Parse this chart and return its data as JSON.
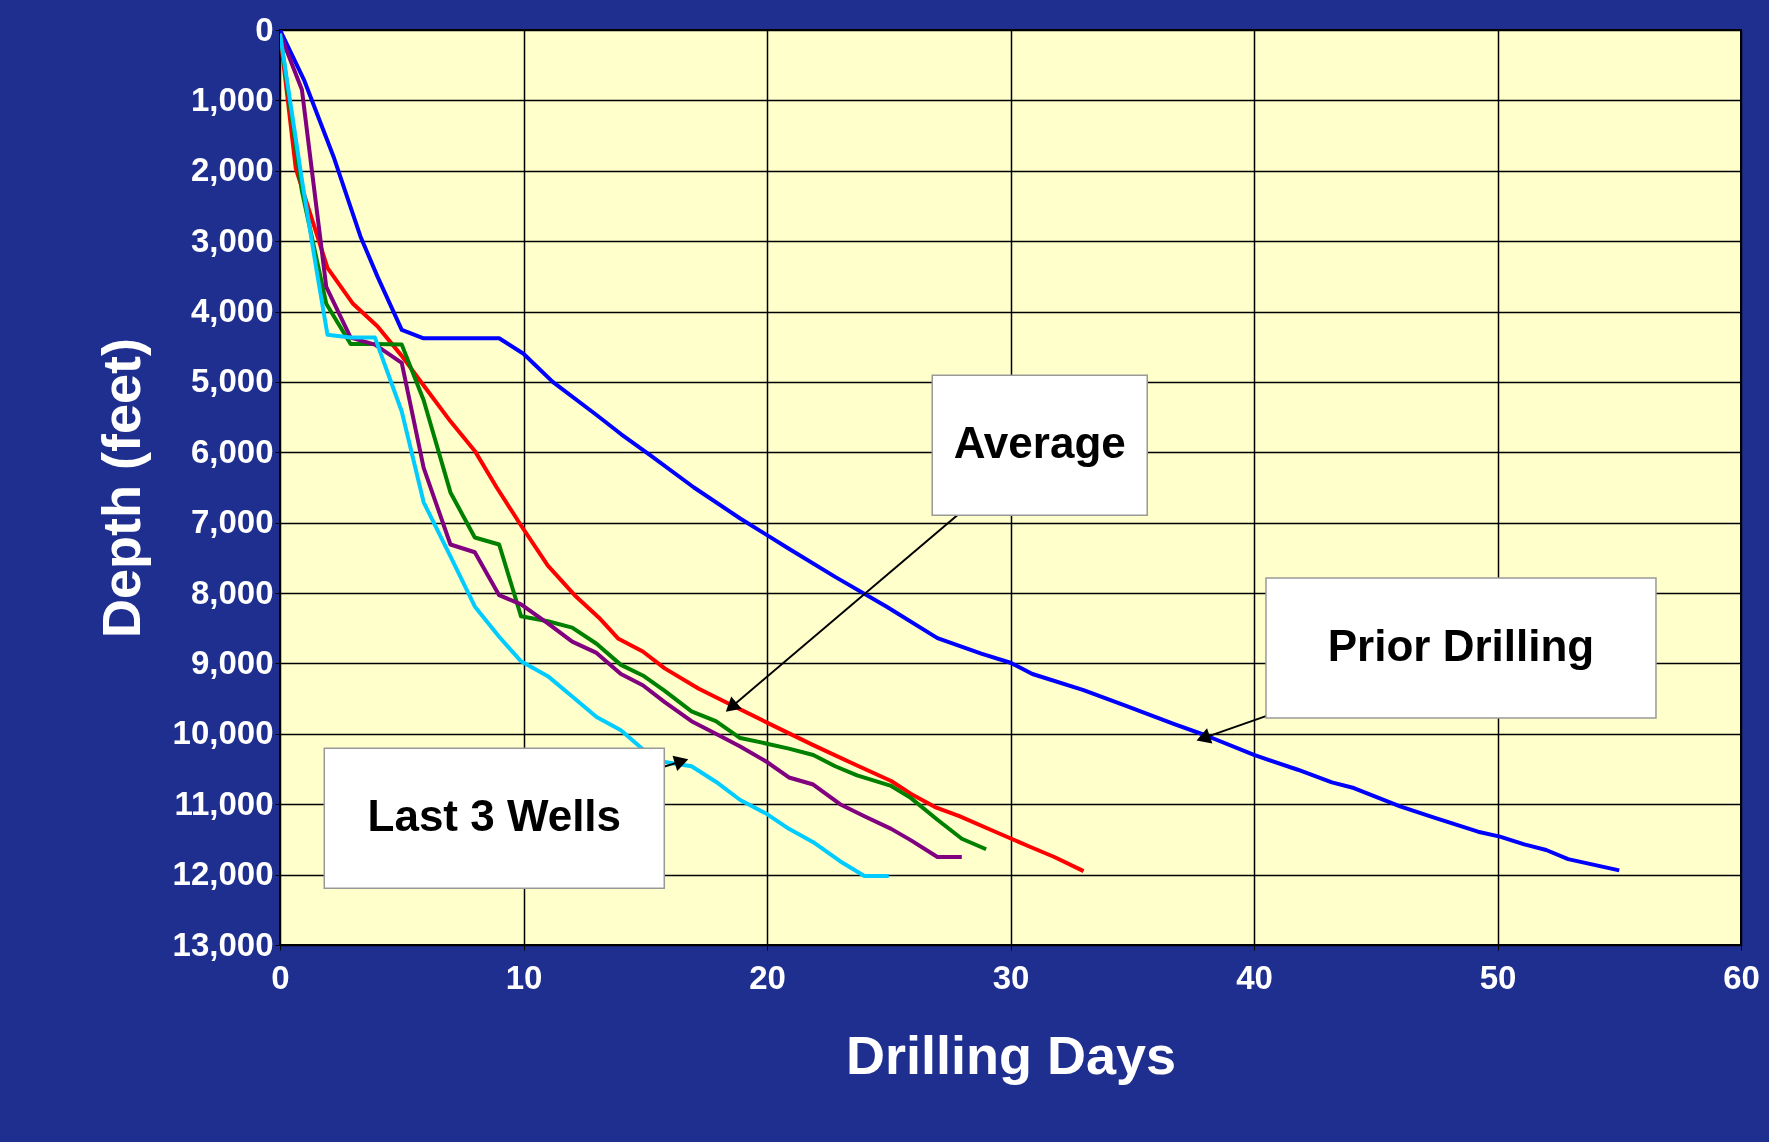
{
  "chart_data": {
    "type": "line",
    "xlabel": "Drilling Days",
    "ylabel": "Depth (feet)",
    "xlim": [
      0,
      60
    ],
    "xticks": [
      0,
      10,
      20,
      30,
      40,
      50,
      60
    ],
    "ylim": [
      13000,
      0
    ],
    "yticks": [
      0,
      {
        "value": 1000,
        "label": "1,000"
      },
      {
        "value": 2000,
        "label": "2,000"
      },
      {
        "value": 3000,
        "label": "3,000"
      },
      {
        "value": 4000,
        "label": "4,000"
      },
      {
        "value": 5000,
        "label": "5,000"
      },
      {
        "value": 6000,
        "label": "6,000"
      },
      {
        "value": 7000,
        "label": "7,000"
      },
      {
        "value": 8000,
        "label": "8,000"
      },
      {
        "value": 9000,
        "label": "9,000"
      },
      {
        "value": 10000,
        "label": "10,000"
      },
      {
        "value": 11000,
        "label": "11,000"
      },
      {
        "value": 12000,
        "label": "12,000"
      },
      {
        "value": 13000,
        "label": "13,000"
      }
    ],
    "grid": true,
    "legend": false,
    "marker": "none",
    "line_style": "solid",
    "series": [
      {
        "color": "#0000ff",
        "x": [
          0,
          1,
          2.2,
          3.3,
          4,
          5,
          5.9,
          9,
          10,
          11.2,
          13,
          14,
          15.2,
          17,
          18.9,
          20.9,
          22.8,
          24.9,
          27,
          28.8,
          30,
          30.9,
          33,
          34.8,
          36.7,
          38,
          40,
          41.8,
          43.2,
          44.1,
          46,
          47.4,
          49.2,
          50.1,
          51.1,
          52,
          52.9,
          55
        ],
        "values": [
          0,
          720,
          1800,
          2930,
          3500,
          4260,
          4380,
          4380,
          4600,
          5000,
          5470,
          5740,
          6040,
          6500,
          6940,
          7370,
          7770,
          8190,
          8640,
          8860,
          8990,
          9150,
          9380,
          9610,
          9860,
          10020,
          10300,
          10510,
          10690,
          10770,
          11030,
          11190,
          11390,
          11460,
          11570,
          11650,
          11780,
          11940
        ]
      },
      {
        "color": "#ff0000",
        "x": [
          0,
          0.65,
          1.95,
          3,
          4,
          5,
          5.9,
          7,
          8,
          8.9,
          9.9,
          11,
          12.1,
          13.1,
          13.9,
          14.9,
          15.8,
          17.2,
          18.6,
          20,
          21.9,
          23.7,
          25.1,
          25.9,
          26.9,
          27.9,
          29.3,
          30.7,
          31.8,
          33
        ],
        "values": [
          50,
          1970,
          3380,
          3890,
          4210,
          4630,
          5050,
          5560,
          5980,
          6500,
          7040,
          7610,
          8030,
          8350,
          8650,
          8830,
          9070,
          9360,
          9600,
          9840,
          10160,
          10450,
          10670,
          10850,
          11040,
          11170,
          11380,
          11590,
          11750,
          11950
        ]
      },
      {
        "color": "#008000",
        "x": [
          0,
          0.9,
          1.9,
          2.9,
          3.9,
          5,
          5.9,
          7,
          8,
          9,
          9.9,
          11,
          12,
          13,
          14,
          14.9,
          15.8,
          16.9,
          17.9,
          18.9,
          20,
          20.9,
          21.9,
          22.8,
          23.7,
          25.1,
          25.9,
          27,
          28,
          29
        ],
        "values": [
          50,
          2290,
          3890,
          4460,
          4460,
          4470,
          5260,
          6570,
          7210,
          7310,
          8330,
          8400,
          8490,
          8720,
          9020,
          9170,
          9390,
          9680,
          9820,
          10060,
          10140,
          10210,
          10300,
          10460,
          10590,
          10740,
          10910,
          11220,
          11490,
          11640
        ]
      },
      {
        "color": "#800080",
        "x": [
          0,
          0.9,
          1.9,
          2.9,
          3.9,
          5,
          5.9,
          7,
          8,
          9,
          9.9,
          11,
          12,
          13,
          14,
          14.9,
          15.8,
          16.9,
          17.9,
          18.9,
          20,
          20.9,
          21.9,
          23,
          24,
          25.1,
          25.9,
          27,
          28
        ],
        "values": [
          50,
          850,
          3650,
          4370,
          4470,
          4730,
          6220,
          7310,
          7420,
          8030,
          8160,
          8430,
          8690,
          8850,
          9150,
          9310,
          9550,
          9820,
          10000,
          10180,
          10400,
          10620,
          10720,
          11000,
          11170,
          11350,
          11510,
          11750,
          11750
        ]
      },
      {
        "color": "#00ccff",
        "x": [
          0,
          0.9,
          1.5,
          1.95,
          2.9,
          3.9,
          5,
          5.9,
          7,
          8,
          9,
          9.9,
          11,
          12,
          13,
          14,
          14.9,
          15.8,
          16.9,
          17.9,
          18.9,
          20,
          20.9,
          21.9,
          23,
          24,
          25
        ],
        "values": [
          50,
          2130,
          3410,
          4330,
          4370,
          4370,
          5420,
          6710,
          7480,
          8190,
          8620,
          8970,
          9180,
          9470,
          9760,
          9950,
          10220,
          10400,
          10460,
          10680,
          10940,
          11140,
          11350,
          11540,
          11810,
          12020,
          12020
        ]
      }
    ],
    "annotations": [
      {
        "text": "Average",
        "x": 18.6,
        "y": 9600
      },
      {
        "text": "Prior Drilling",
        "x": 38,
        "y": 10050
      },
      {
        "text": "Last 3 Wells",
        "x": 16.4,
        "y": 10400
      }
    ]
  }
}
